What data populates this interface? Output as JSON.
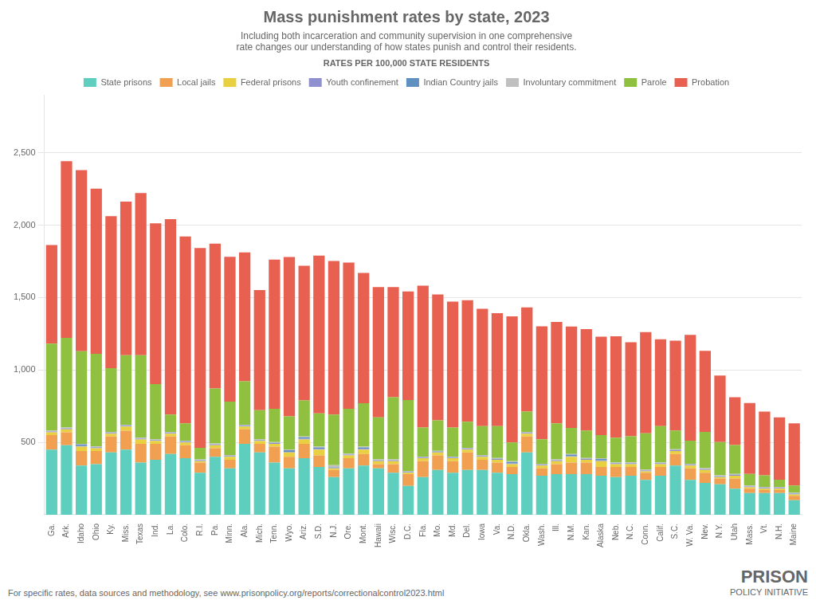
{
  "chart_data": {
    "type": "bar",
    "stacked": true,
    "title": "Mass punishment rates by state, 2023",
    "subtitle": "Including both incarceration and community supervision in one comprehensive\nrate changes our understanding of how states punish and control their residents.",
    "legend_title": "RATES PER 100,000 STATE RESIDENTS",
    "footer": "For specific rates, data sources and methodology, see www.prisonpolicy.org/reports/correctionalcontrol2023.html",
    "annotations": [
      "PRISON",
      "POLICY INITIATIVE"
    ],
    "legend": "top",
    "grid": true,
    "ylim": [
      0,
      2900
    ],
    "yticks": [
      500,
      {
        "value": 1000,
        "label": "1,000"
      },
      {
        "value": 1500,
        "label": "1,500"
      },
      {
        "value": 2000,
        "label": "2,000"
      },
      {
        "value": 2500,
        "label": "2,500"
      }
    ],
    "categories": [
      "Ga.",
      "Ark.",
      "Idaho",
      "Ohio",
      "Ky.",
      "Miss.",
      "Texas",
      "Ind.",
      "La.",
      "Colo.",
      "R.I.",
      "Pa.",
      "Minn.",
      "Ala.",
      "Mich.",
      "Tenn.",
      "Wyo.",
      "Ariz.",
      "S.D.",
      "N.J.",
      "Ore.",
      "Mont.",
      "Hawaii",
      "Wisc.",
      "D.C.",
      "Fla.",
      "Mo.",
      "Md.",
      "Del.",
      "Iowa",
      "Va.",
      "N.D.",
      "Okla.",
      "Wash.",
      "Ill.",
      "N.M.",
      "Kan.",
      "Alaska",
      "Neb.",
      "N.C.",
      "Conn.",
      "Calif.",
      "S.C.",
      "W. Va.",
      "Nev.",
      "N.Y.",
      "Utah",
      "Mass.",
      "Vt.",
      "N.H.",
      "Maine"
    ],
    "series": [
      {
        "name": "State prisons",
        "color": "#5ecfbf",
        "values": [
          450,
          480,
          340,
          350,
          430,
          450,
          360,
          380,
          420,
          390,
          290,
          400,
          320,
          490,
          430,
          360,
          320,
          390,
          330,
          260,
          320,
          340,
          320,
          290,
          200,
          260,
          310,
          290,
          310,
          310,
          290,
          280,
          430,
          270,
          280,
          280,
          280,
          270,
          260,
          270,
          240,
          270,
          340,
          240,
          220,
          210,
          180,
          150,
          150,
          150,
          100
        ]
      },
      {
        "name": "Local jails",
        "color": "#f0a050",
        "values": [
          100,
          90,
          100,
          90,
          110,
          130,
          130,
          110,
          120,
          90,
          70,
          60,
          60,
          100,
          60,
          110,
          80,
          100,
          80,
          50,
          70,
          80,
          30,
          60,
          80,
          110,
          100,
          80,
          120,
          70,
          70,
          50,
          110,
          50,
          70,
          80,
          80,
          60,
          70,
          60,
          50,
          60,
          80,
          80,
          70,
          40,
          70,
          30,
          20,
          20,
          30
        ]
      },
      {
        "name": "Federal prisons",
        "color": "#e8d040",
        "values": [
          20,
          20,
          30,
          20,
          20,
          30,
          30,
          20,
          20,
          20,
          10,
          20,
          20,
          20,
          20,
          20,
          30,
          30,
          40,
          10,
          20,
          30,
          20,
          20,
          10,
          20,
          20,
          20,
          20,
          20,
          20,
          20,
          20,
          20,
          20,
          40,
          20,
          40,
          20,
          20,
          10,
          20,
          20,
          20,
          20,
          10,
          20,
          10,
          10,
          10,
          10
        ]
      },
      {
        "name": "Youth confinement",
        "color": "#9090d0",
        "values": [
          5,
          5,
          5,
          5,
          5,
          5,
          5,
          5,
          5,
          5,
          5,
          5,
          5,
          5,
          5,
          5,
          5,
          5,
          5,
          5,
          5,
          5,
          5,
          5,
          5,
          5,
          5,
          5,
          5,
          5,
          5,
          5,
          5,
          5,
          5,
          5,
          5,
          5,
          5,
          5,
          5,
          5,
          5,
          5,
          5,
          5,
          5,
          5,
          5,
          5,
          5
        ]
      },
      {
        "name": "Indian Country jails",
        "color": "#6090c0",
        "values": [
          2,
          2,
          10,
          2,
          2,
          2,
          2,
          2,
          2,
          2,
          2,
          2,
          2,
          2,
          2,
          2,
          10,
          10,
          10,
          2,
          2,
          10,
          2,
          2,
          2,
          2,
          2,
          2,
          2,
          2,
          2,
          10,
          2,
          2,
          2,
          10,
          2,
          10,
          2,
          2,
          2,
          2,
          2,
          2,
          2,
          2,
          2,
          2,
          2,
          2,
          2
        ]
      },
      {
        "name": "Involuntary commitment",
        "color": "#c0c0c0",
        "values": [
          5,
          5,
          5,
          5,
          5,
          5,
          5,
          5,
          5,
          5,
          5,
          5,
          5,
          5,
          5,
          5,
          5,
          5,
          5,
          15,
          5,
          5,
          5,
          5,
          5,
          5,
          5,
          5,
          5,
          5,
          5,
          5,
          5,
          5,
          5,
          5,
          5,
          5,
          5,
          5,
          5,
          5,
          5,
          5,
          5,
          5,
          5,
          5,
          5,
          5,
          5
        ]
      },
      {
        "name": "Parole",
        "color": "#90c040",
        "values": [
          600,
          620,
          640,
          640,
          440,
          480,
          570,
          380,
          120,
          120,
          80,
          380,
          370,
          300,
          200,
          230,
          230,
          250,
          230,
          350,
          310,
          300,
          290,
          430,
          490,
          200,
          210,
          200,
          180,
          200,
          220,
          130,
          140,
          170,
          250,
          180,
          190,
          160,
          170,
          180,
          250,
          250,
          130,
          160,
          250,
          230,
          200,
          80,
          80,
          50,
          50
        ]
      },
      {
        "name": "Probation",
        "color": "#e86050",
        "values": [
          680,
          1220,
          1250,
          1140,
          1050,
          1060,
          1120,
          1110,
          1350,
          1290,
          1380,
          1000,
          1000,
          890,
          830,
          1030,
          1100,
          930,
          1090,
          1060,
          1010,
          900,
          900,
          760,
          750,
          980,
          870,
          870,
          840,
          810,
          780,
          870,
          720,
          780,
          700,
          700,
          700,
          680,
          700,
          650,
          700,
          600,
          620,
          730,
          560,
          460,
          330,
          490,
          440,
          430,
          430
        ]
      }
    ]
  }
}
